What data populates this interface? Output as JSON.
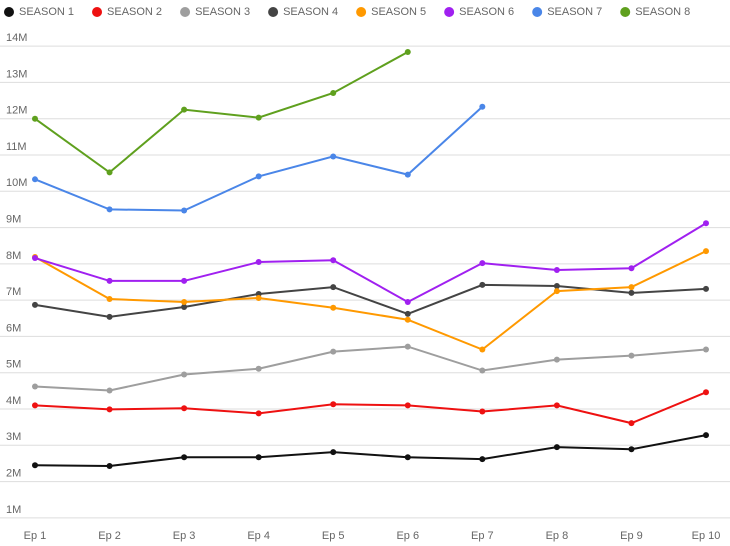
{
  "chart_data": {
    "type": "line",
    "categories": [
      "Ep 1",
      "Ep 2",
      "Ep 3",
      "Ep 4",
      "Ep 5",
      "Ep 6",
      "Ep 7",
      "Ep 8",
      "Ep 9",
      "Ep 10"
    ],
    "series": [
      {
        "name": "SEASON 1",
        "color": "#111111",
        "values": [
          2.45,
          2.43,
          2.67,
          2.67,
          2.81,
          2.67,
          2.62,
          2.95,
          2.89,
          3.28
        ]
      },
      {
        "name": "SEASON 2",
        "color": "#ee1111",
        "values": [
          4.1,
          3.99,
          4.02,
          3.88,
          4.13,
          4.1,
          3.93,
          4.1,
          3.61,
          4.46
        ]
      },
      {
        "name": "SEASON 3",
        "color": "#9e9e9e",
        "values": [
          4.62,
          4.51,
          4.95,
          5.11,
          5.58,
          5.72,
          5.06,
          5.36,
          5.47,
          5.64
        ]
      },
      {
        "name": "SEASON 4",
        "color": "#444444",
        "values": [
          6.87,
          6.54,
          6.81,
          7.17,
          7.36,
          6.62,
          7.42,
          7.39,
          7.2,
          7.31
        ]
      },
      {
        "name": "SEASON 5",
        "color": "#ff9900",
        "values": [
          8.19,
          7.03,
          6.95,
          7.06,
          6.79,
          6.46,
          5.64,
          7.25,
          7.36,
          8.35
        ]
      },
      {
        "name": "SEASON 6",
        "color": "#a020f0",
        "values": [
          8.16,
          7.53,
          7.53,
          8.05,
          8.1,
          6.95,
          8.02,
          7.83,
          7.88,
          9.12
        ]
      },
      {
        "name": "SEASON 7",
        "color": "#4a86e8",
        "values": [
          10.33,
          9.5,
          9.47,
          10.41,
          10.96,
          10.46,
          12.33,
          null,
          null,
          null
        ]
      },
      {
        "name": "SEASON 8",
        "color": "#5fa01e",
        "values": [
          12.0,
          10.52,
          12.25,
          12.03,
          12.71,
          13.84,
          null,
          null,
          null,
          null
        ]
      }
    ],
    "ylim": [
      0.5,
      14.5
    ],
    "yticks": [
      {
        "value": 1,
        "label": "1M"
      },
      {
        "value": 2,
        "label": "2M"
      },
      {
        "value": 3,
        "label": "3M"
      },
      {
        "value": 4,
        "label": "4M"
      },
      {
        "value": 5,
        "label": "5M"
      },
      {
        "value": 6,
        "label": "6M"
      },
      {
        "value": 7,
        "label": "7M"
      },
      {
        "value": 8,
        "label": "8M"
      },
      {
        "value": 9,
        "label": "9M"
      },
      {
        "value": 10,
        "label": "10M"
      },
      {
        "value": 11,
        "label": "11M"
      },
      {
        "value": 12,
        "label": "12M"
      },
      {
        "value": 13,
        "label": "13M"
      },
      {
        "value": 14,
        "label": "14M"
      }
    ],
    "grid": true
  }
}
